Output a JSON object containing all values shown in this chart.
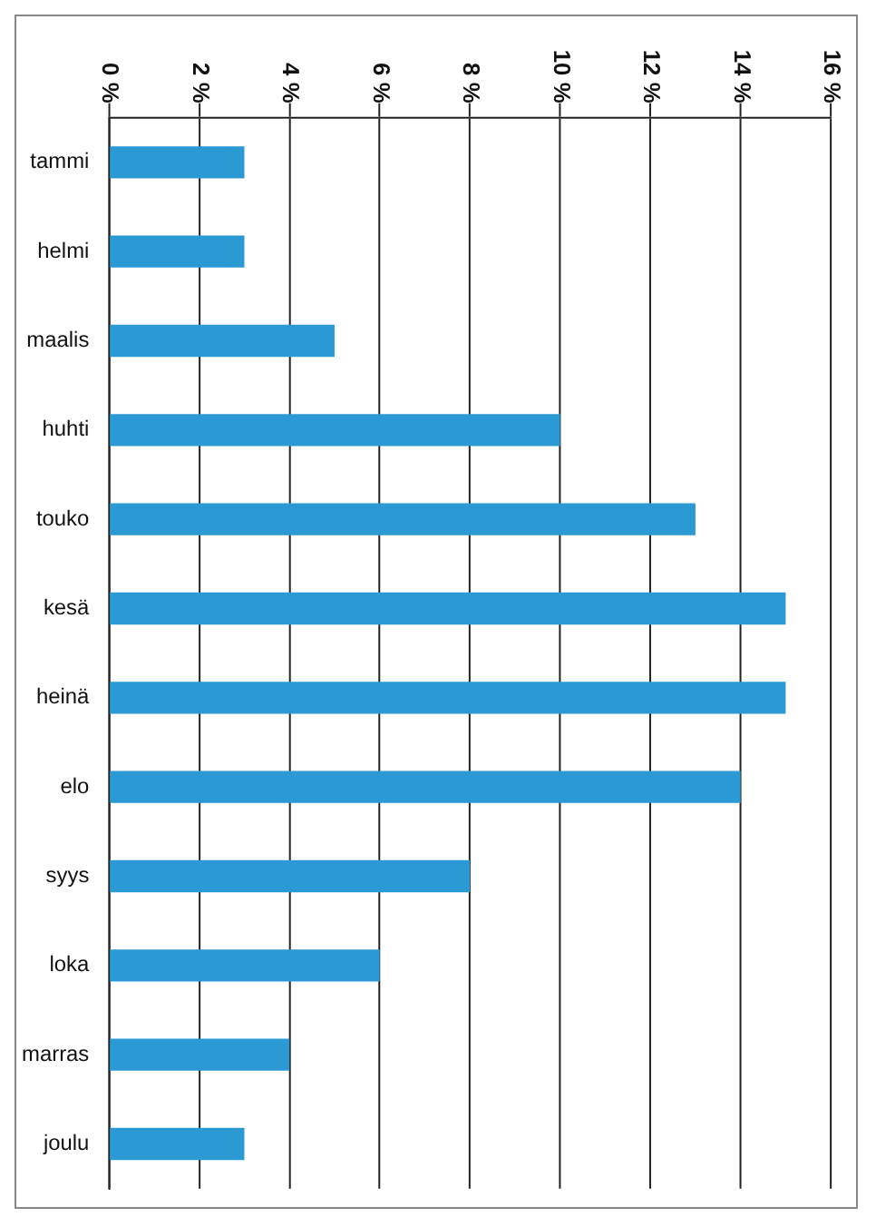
{
  "chart_data": {
    "type": "bar",
    "orientation": "horizontal",
    "categories": [
      "tammi",
      "helmi",
      "maalis",
      "huhti",
      "touko",
      "kesä",
      "heinä",
      "elo",
      "syys",
      "loka",
      "marras",
      "joulu"
    ],
    "values": [
      3,
      3,
      5,
      10,
      13,
      15,
      15,
      14,
      8,
      6,
      4,
      3
    ],
    "color": "#2b9ad4",
    "xlim": [
      0,
      16
    ],
    "xticks": [
      {
        "value": 0,
        "label": "0 %"
      },
      {
        "value": 2,
        "label": "2 %"
      },
      {
        "value": 4,
        "label": "4 %"
      },
      {
        "value": 6,
        "label": "6 %"
      },
      {
        "value": 8,
        "label": "8 %"
      },
      {
        "value": 10,
        "label": "10 %"
      },
      {
        "value": 12,
        "label": "12 %"
      },
      {
        "value": 14,
        "label": "14 %"
      },
      {
        "value": 16,
        "label": "16 %"
      }
    ],
    "grid": "x",
    "legend": false
  }
}
